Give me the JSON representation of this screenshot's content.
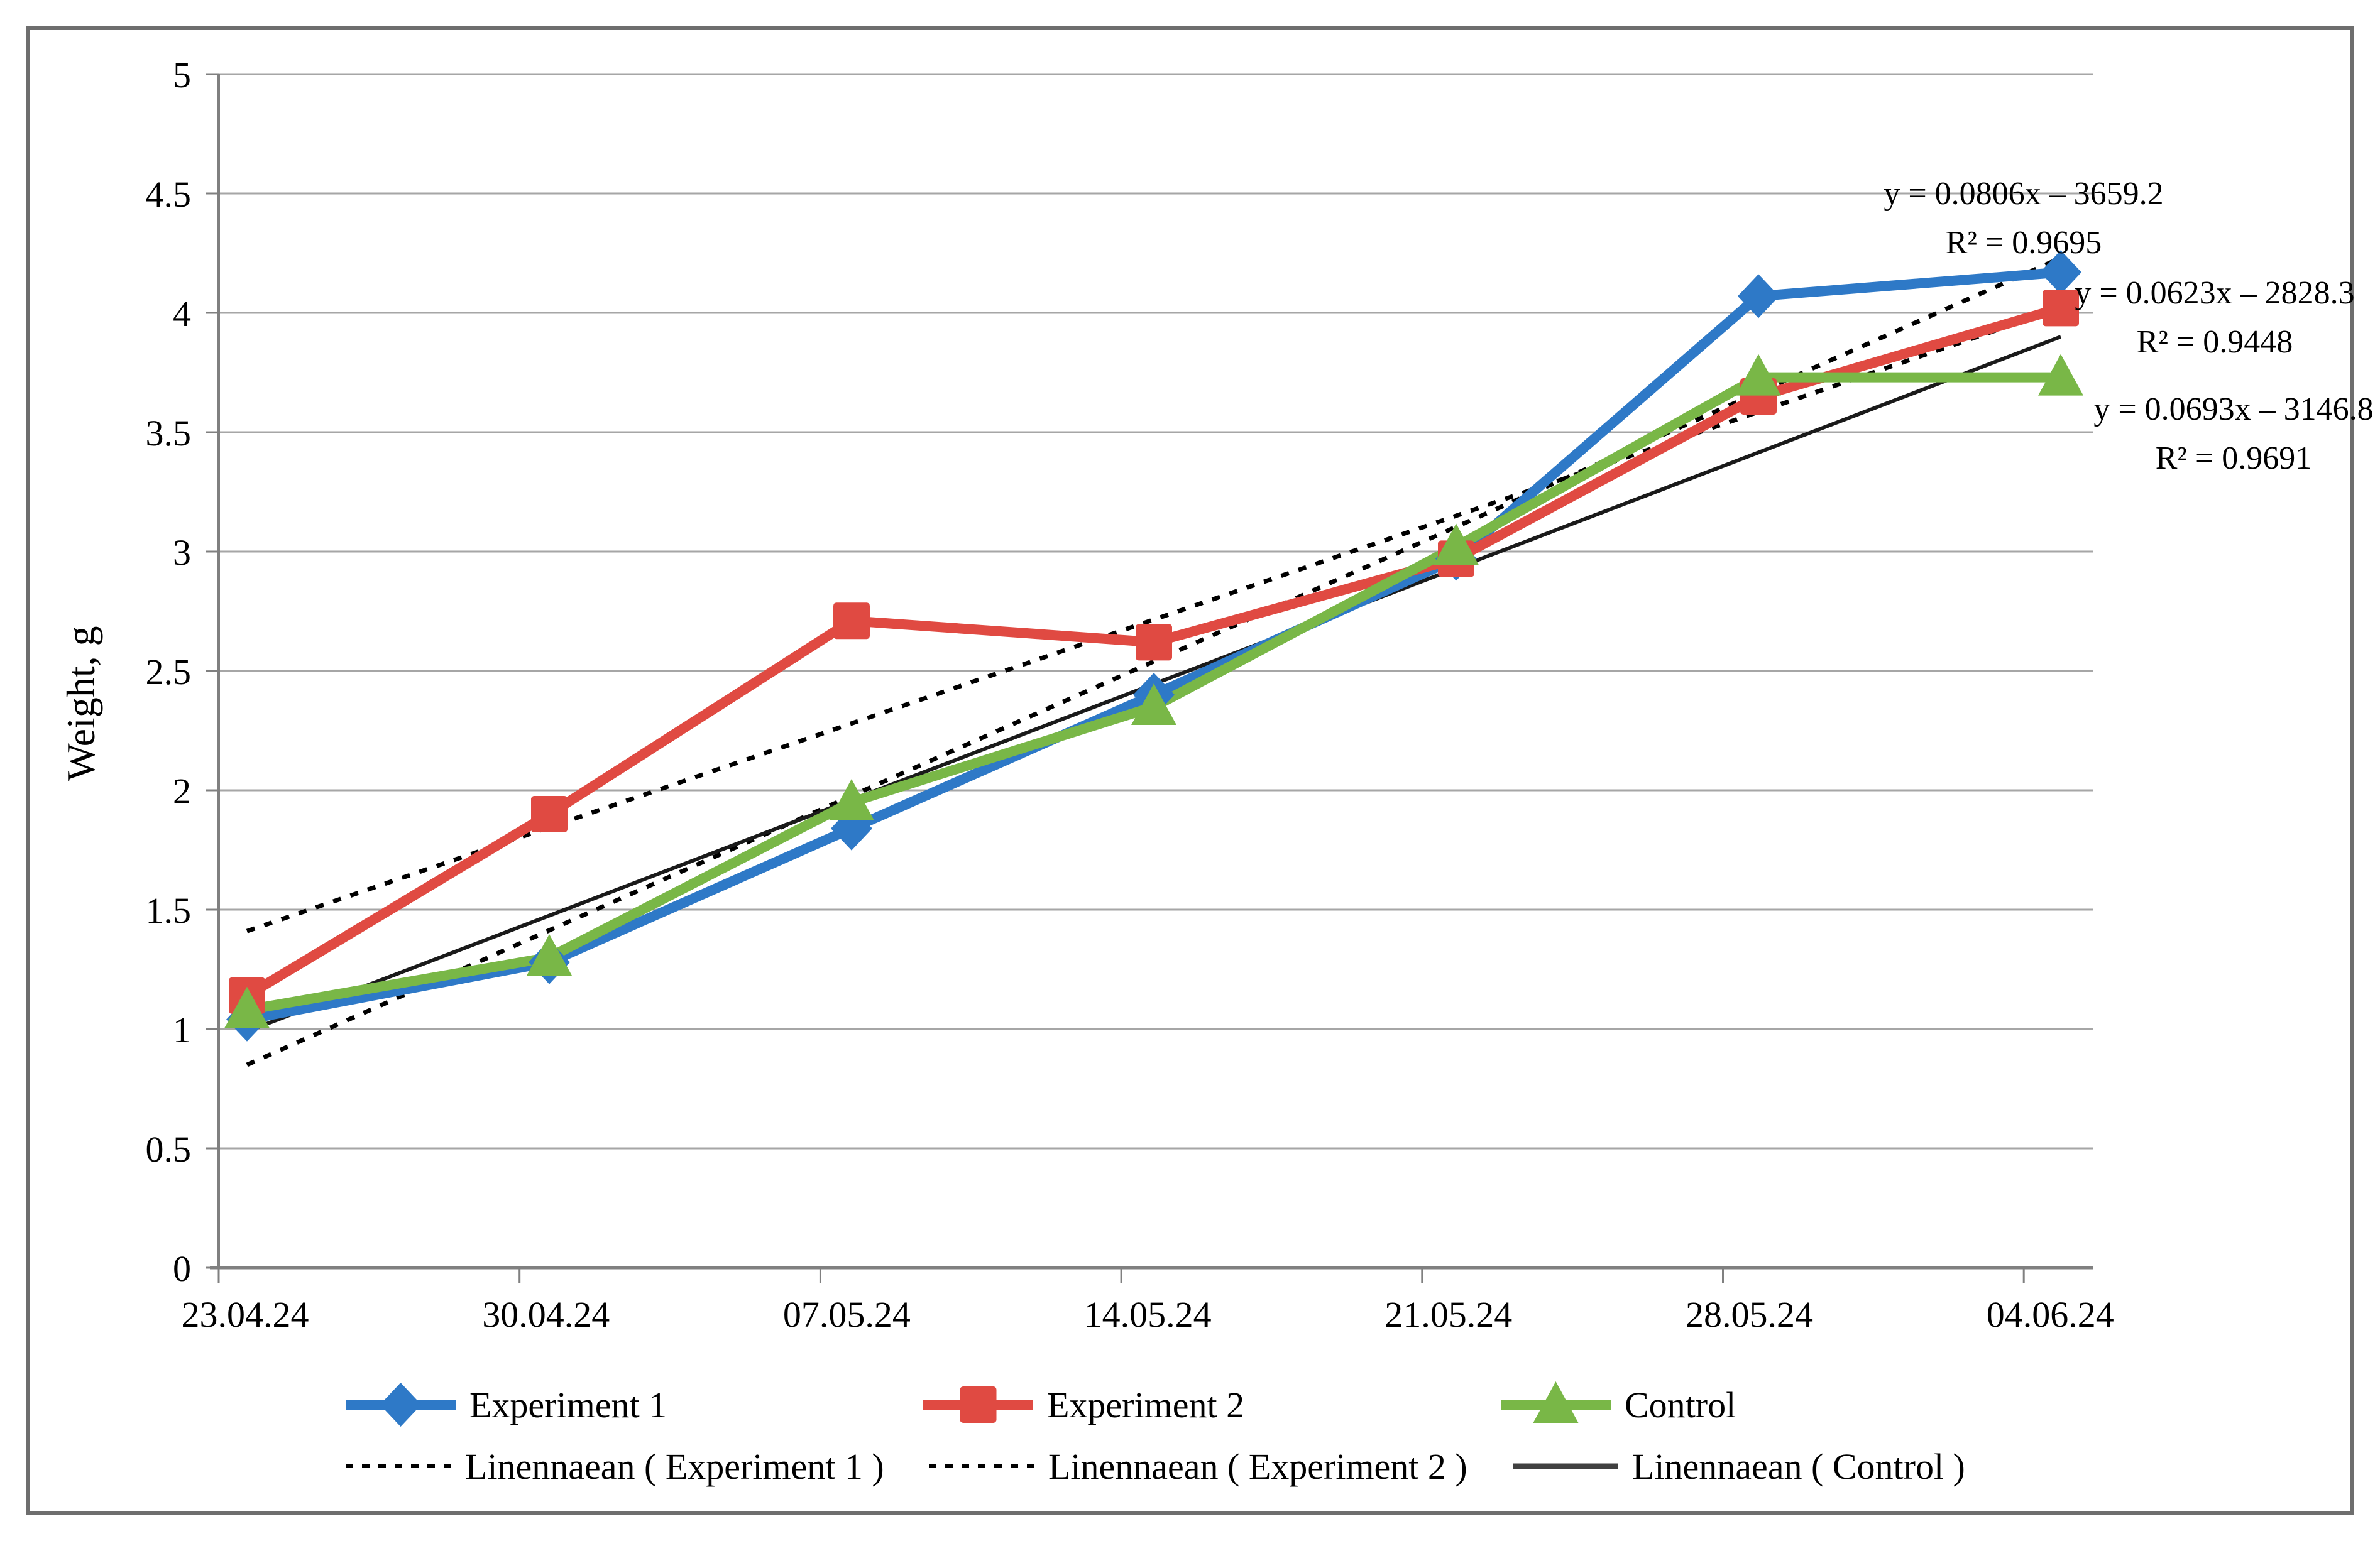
{
  "chart_data": {
    "type": "line",
    "title": "",
    "xlabel": "",
    "ylabel": "Weight, g",
    "ylim": [
      0,
      5
    ],
    "ytick_step": 0.5,
    "yticks": [
      "0",
      "0.5",
      "1",
      "1.5",
      "2",
      "2.5",
      "3",
      "3.5",
      "4",
      "4.5",
      "5"
    ],
    "grid": true,
    "legend_position": "bottom",
    "categories": [
      "23.04.24",
      "30.04.24",
      "07.05.24",
      "14.05.24",
      "21.05.24",
      "28.05.24",
      "04.06.24"
    ],
    "series": [
      {
        "name": "Experiment 1",
        "color": "#2E79C7",
        "marker": "diamond",
        "values": [
          1.04,
          1.28,
          1.84,
          2.4,
          2.97,
          4.07,
          4.17
        ],
        "trendline": {
          "legend_label": "Linennaean ( Experiment 1 )",
          "equation": "y = 0.0806x – 3659.2",
          "r2": "R² = 0.9695",
          "style": "dotted",
          "color": "#000000",
          "start_value": 0.85,
          "end_value": 4.23
        }
      },
      {
        "name": "Experiment 2",
        "color": "#E04A42",
        "marker": "square",
        "values": [
          1.14,
          1.9,
          2.71,
          2.62,
          2.97,
          3.65,
          4.02
        ],
        "trendline": {
          "legend_label": "Linennaean ( Experiment 2 )",
          "equation": "y = 0.0623x – 2828.3",
          "r2": "R² = 0.9448",
          "style": "dotted",
          "color": "#000000",
          "start_value": 1.41,
          "end_value": 4.02
        }
      },
      {
        "name": "Control",
        "color": "#79B747",
        "marker": "triangle",
        "values": [
          1.08,
          1.3,
          1.95,
          2.35,
          3.02,
          3.73,
          3.73
        ],
        "trendline": {
          "legend_label": "Linennaean ( Control )",
          "equation": "y = 0.0693x – 3146.8",
          "r2": "R² = 0.9691",
          "style": "solid",
          "color": "#404040",
          "start_value": 0.99,
          "end_value": 3.9
        }
      }
    ],
    "colors": {
      "gridline": "#A6A6A6",
      "axis": "#808080",
      "figure_border": "#6E6E6E",
      "text": "#000000"
    }
  }
}
